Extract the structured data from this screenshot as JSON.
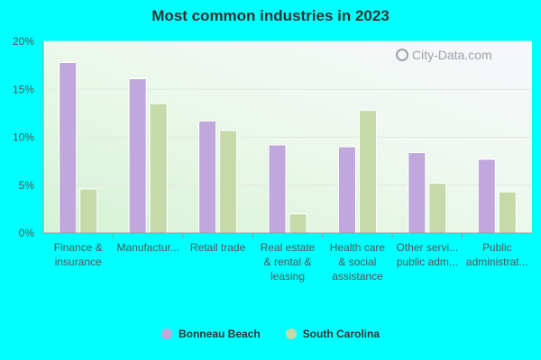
{
  "chart_data": {
    "type": "bar",
    "title": "Most common industries in 2023",
    "categories": [
      [
        "Finance &",
        "insurance"
      ],
      [
        "Manufactur..."
      ],
      [
        "Retail trade"
      ],
      [
        "Real estate",
        "& rental &",
        "leasing"
      ],
      [
        "Health care",
        "& social",
        "assistance"
      ],
      [
        "Other servi...",
        "public adm..."
      ],
      [
        "Public",
        "administrat..."
      ]
    ],
    "series": [
      {
        "name": "Bonneau Beach",
        "color": "#c0a8dc",
        "values": [
          17.8,
          16.1,
          11.7,
          9.2,
          9.0,
          8.4,
          7.7
        ]
      },
      {
        "name": "South Carolina",
        "color": "#c6d9a8",
        "values": [
          4.6,
          13.5,
          10.7,
          2.0,
          12.8,
          5.2,
          4.3
        ]
      }
    ],
    "yticks": [
      "0%",
      "5%",
      "10%",
      "15%",
      "20%"
    ],
    "ylim": [
      0,
      20
    ],
    "xlabel": "",
    "ylabel": "",
    "legend_position": "bottom",
    "watermark": "City-Data.com"
  }
}
